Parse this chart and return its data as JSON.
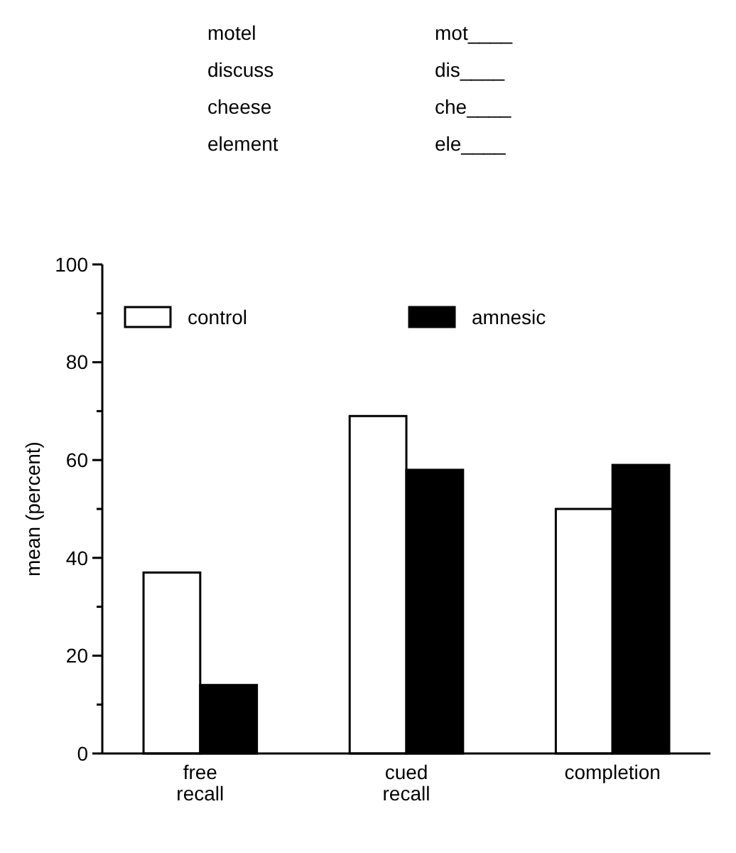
{
  "chart_data": {
    "type": "bar",
    "ylabel": "mean (percent)",
    "categories": [
      "free recall",
      "cued recall",
      "completion"
    ],
    "series": [
      {
        "name": "control",
        "color": "#ffffff",
        "values": [
          37,
          69,
          50
        ]
      },
      {
        "name": "amnesic",
        "color": "#000000",
        "values": [
          14,
          58,
          59
        ]
      }
    ],
    "ylim": [
      0,
      100
    ],
    "yticks": [
      0,
      {
        "value": 10,
        "label": null
      },
      20,
      {
        "value": 30,
        "label": null
      },
      40,
      {
        "value": 50,
        "label": null
      },
      60,
      {
        "value": 70,
        "label": null
      },
      80,
      {
        "value": 90,
        "label": null
      },
      100
    ],
    "grid": false,
    "legend": "top",
    "annotations": [
      "motel",
      "mot____",
      "discuss",
      "dis____",
      "cheese",
      "che____",
      "element",
      "ele____"
    ]
  }
}
